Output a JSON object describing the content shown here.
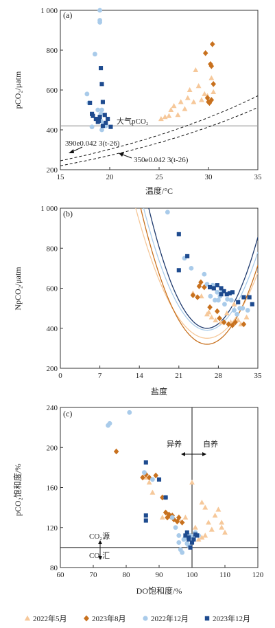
{
  "legend": [
    {
      "label": "2022年5月",
      "color": "#f6c89a",
      "marker": "triangle"
    },
    {
      "label": "2023年8月",
      "color": "#c8711e",
      "marker": "diamond"
    },
    {
      "label": "2022年12月",
      "color": "#a9cbea",
      "marker": "circle"
    },
    {
      "label": "2023年12月",
      "color": "#1e4b8f",
      "marker": "square"
    }
  ],
  "chart_data": [
    {
      "panel_label": "(a)",
      "type": "scatter",
      "xlabel": "温度/°C",
      "ylabel": "pCO₂/μatm",
      "xlim": [
        15,
        35
      ],
      "ylim": [
        200,
        1000
      ],
      "xticks": [
        15,
        20,
        25,
        30,
        35
      ],
      "yticks": [
        200,
        400,
        600,
        800,
        1000
      ],
      "ytick_labels": [
        "200",
        "400",
        "600",
        "800",
        "1 000"
      ],
      "reference_line": {
        "y": 420,
        "label": "大气pCO₂"
      },
      "curves": [
        {
          "label": "390e0.042 3(t-26)",
          "a": 390,
          "k": 0.0423,
          "t0": 26
        },
        {
          "label": "350e0.042 3(t-26)",
          "a": 350,
          "k": 0.0423,
          "t0": 26
        }
      ],
      "series": [
        {
          "name": "2022年5月",
          "points": [
            [
              25.2,
              455
            ],
            [
              25.6,
              465
            ],
            [
              26.0,
              470
            ],
            [
              26.2,
              500
            ],
            [
              26.5,
              520
            ],
            [
              26.9,
              475
            ],
            [
              27.2,
              540
            ],
            [
              27.6,
              505
            ],
            [
              27.9,
              560
            ],
            [
              28.1,
              600
            ],
            [
              28.5,
              540
            ],
            [
              28.7,
              700
            ],
            [
              29.0,
              620
            ],
            [
              29.3,
              550
            ],
            [
              29.6,
              580
            ],
            [
              29.9,
              570
            ],
            [
              30.3,
              660
            ],
            [
              30.5,
              590
            ]
          ]
        },
        {
          "name": "2023年8月",
          "points": [
            [
              29.7,
              785
            ],
            [
              29.9,
              560
            ],
            [
              30.0,
              540
            ],
            [
              30.1,
              535
            ],
            [
              30.2,
              730
            ],
            [
              30.3,
              720
            ],
            [
              30.4,
              830
            ],
            [
              30.5,
              630
            ],
            [
              30.3,
              550
            ]
          ]
        },
        {
          "name": "2022年12月",
          "points": [
            [
              17.7,
              580
            ],
            [
              17.9,
              535
            ],
            [
              18.2,
              415
            ],
            [
              18.5,
              780
            ],
            [
              18.8,
              500
            ],
            [
              19.0,
              1000
            ],
            [
              19.0,
              950
            ],
            [
              19.0,
              940
            ],
            [
              19.1,
              480
            ],
            [
              19.2,
              400
            ],
            [
              19.2,
              500
            ],
            [
              19.4,
              430
            ],
            [
              19.6,
              420
            ],
            [
              19.1,
              445
            ]
          ]
        },
        {
          "name": "2023年12月",
          "points": [
            [
              18.0,
              535
            ],
            [
              18.2,
              480
            ],
            [
              18.3,
              470
            ],
            [
              18.6,
              455
            ],
            [
              18.8,
              440
            ],
            [
              19.0,
              465
            ],
            [
              19.1,
              710
            ],
            [
              19.2,
              630
            ],
            [
              19.3,
              540
            ],
            [
              19.5,
              475
            ],
            [
              19.6,
              435
            ],
            [
              19.8,
              455
            ],
            [
              20.1,
              415
            ],
            [
              19.3,
              420
            ],
            [
              18.9,
              445
            ]
          ]
        }
      ]
    },
    {
      "panel_label": "(b)",
      "type": "scatter",
      "xlabel": "盐度",
      "ylabel": "NpCO₂/μatm",
      "xlim": [
        0,
        35
      ],
      "ylim": [
        200,
        1000
      ],
      "xticks": [
        0,
        7,
        14,
        21,
        28,
        35
      ],
      "yticks": [
        200,
        400,
        600,
        800,
        1000
      ],
      "ytick_labels": [
        "200",
        "400",
        "600",
        "800",
        "1 000"
      ],
      "curves": [
        {
          "color": "#f6c89a",
          "c0": 4.0,
          "a": 350,
          "k": 0.00042,
          "xmin": 1.0,
          "xmax": 35
        },
        {
          "color": "#a9cbea",
          "c0": 4.8,
          "a": 390,
          "k": 0.00026,
          "xmin": 2.6,
          "xmax": 35
        },
        {
          "color": "#1e3a6e",
          "c0": 5.6,
          "a": 400,
          "k": 0.00018,
          "xmin": 6.0,
          "xmax": 35
        },
        {
          "color": "#c8711e",
          "c0": 4.8,
          "a": 320,
          "k": 0.00088,
          "xmin": 11.6,
          "xmax": 35
        }
      ],
      "series": [
        {
          "name": "2022年5月",
          "points": [
            [
              23.5,
              575
            ],
            [
              25.0,
              560
            ],
            [
              26.0,
              470
            ],
            [
              26.8,
              455
            ],
            [
              27.5,
              440
            ],
            [
              28.5,
              430
            ],
            [
              29.5,
              475
            ],
            [
              30.2,
              430
            ],
            [
              31.5,
              440
            ],
            [
              32.0,
              420
            ],
            [
              33.0,
              455
            ],
            [
              26.3,
              480
            ],
            [
              30.8,
              520
            ]
          ]
        },
        {
          "name": "2023年8月",
          "points": [
            [
              23.5,
              565
            ],
            [
              24.3,
              555
            ],
            [
              24.6,
              610
            ],
            [
              24.9,
              630
            ],
            [
              25.5,
              605
            ],
            [
              26.5,
              505
            ],
            [
              27.8,
              485
            ],
            [
              28.2,
              450
            ],
            [
              29.0,
              430
            ],
            [
              29.8,
              420
            ],
            [
              30.5,
              415
            ],
            [
              31.0,
              430
            ],
            [
              32.5,
              420
            ]
          ]
        },
        {
          "name": "2022年12月",
          "points": [
            [
              19.0,
              980
            ],
            [
              22.0,
              750
            ],
            [
              23.2,
              700
            ],
            [
              25.5,
              670
            ],
            [
              26.0,
              620
            ],
            [
              27.0,
              615
            ],
            [
              27.8,
              580
            ],
            [
              28.3,
              560
            ],
            [
              28.7,
              585
            ],
            [
              29.1,
              520
            ],
            [
              29.6,
              545
            ],
            [
              30.3,
              540
            ],
            [
              30.8,
              490
            ],
            [
              31.3,
              470
            ],
            [
              31.8,
              500
            ],
            [
              32.3,
              500
            ],
            [
              33.2,
              490
            ],
            [
              26.6,
              560
            ],
            [
              27.4,
              540
            ],
            [
              28.0,
              540
            ]
          ]
        },
        {
          "name": "2023年12月",
          "points": [
            [
              21.0,
              870
            ],
            [
              21.0,
              690
            ],
            [
              22.5,
              760
            ],
            [
              26.5,
              605
            ],
            [
              27.2,
              600
            ],
            [
              27.8,
              615
            ],
            [
              28.5,
              600
            ],
            [
              29.0,
              585
            ],
            [
              29.5,
              570
            ],
            [
              30.0,
              575
            ],
            [
              30.5,
              580
            ],
            [
              31.5,
              530
            ],
            [
              32.5,
              555
            ],
            [
              33.5,
              555
            ],
            [
              34.0,
              520
            ],
            [
              28.5,
              570
            ]
          ]
        }
      ]
    },
    {
      "panel_label": "(c)",
      "type": "scatter",
      "xlabel": "DO饱和度/%",
      "ylabel": "pCO₂饱和度/%",
      "xlim": [
        60,
        120
      ],
      "ylim": [
        80,
        240
      ],
      "xticks": [
        60,
        70,
        80,
        90,
        100,
        110,
        120
      ],
      "yticks": [
        80,
        120,
        160,
        200,
        240
      ],
      "ytick_labels": [
        "80",
        "120",
        "160",
        "200",
        "240"
      ],
      "hline": {
        "y": 100
      },
      "vline": {
        "x": 100
      },
      "annotations": {
        "yiyang": "异养",
        "ziyang": "自养",
        "source": "CO₂源",
        "sink": "CO₂汇"
      },
      "series": [
        {
          "name": "2022年5月",
          "points": [
            [
              86,
              170
            ],
            [
              87,
              165
            ],
            [
              88,
              155
            ],
            [
              91,
              130
            ],
            [
              96,
              128
            ],
            [
              98,
              130
            ],
            [
              100,
              165
            ],
            [
              101,
              120
            ],
            [
              102,
              108
            ],
            [
              103,
              145
            ],
            [
              103,
              110
            ],
            [
              104,
              140
            ],
            [
              105,
              125
            ],
            [
              107,
              132
            ],
            [
              108,
              138
            ],
            [
              109,
              120
            ],
            [
              109,
              125
            ],
            [
              110,
              115
            ],
            [
              106,
              118
            ],
            [
              104,
              112
            ]
          ]
        },
        {
          "name": "2023年8月",
          "points": [
            [
              77,
              196
            ],
            [
              85,
              170
            ],
            [
              86,
              173
            ],
            [
              87,
              170
            ],
            [
              89,
              172
            ],
            [
              91,
              150
            ],
            [
              92,
              135
            ],
            [
              92.5,
              130
            ],
            [
              93,
              133
            ],
            [
              93.5,
              131
            ],
            [
              94,
              132
            ],
            [
              94.5,
              128
            ],
            [
              95.5,
              126
            ],
            [
              96,
              130
            ],
            [
              97,
              125
            ]
          ]
        },
        {
          "name": "2022年12月",
          "points": [
            [
              74.5,
              222
            ],
            [
              75,
              224
            ],
            [
              81,
              235
            ],
            [
              85.5,
              175
            ],
            [
              88,
              168
            ],
            [
              92,
              150
            ],
            [
              94,
              130
            ],
            [
              96,
              105
            ],
            [
              96.5,
              98
            ],
            [
              97,
              95
            ],
            [
              97.5,
              108
            ],
            [
              98,
              110
            ],
            [
              98.5,
              104
            ],
            [
              99,
              102
            ],
            [
              99.5,
              112
            ],
            [
              100,
              110
            ],
            [
              100.5,
              108
            ],
            [
              101,
              115
            ],
            [
              102,
              112
            ],
            [
              95,
              120
            ],
            [
              96,
              112
            ]
          ]
        },
        {
          "name": "2023年12月",
          "points": [
            [
              86,
              132
            ],
            [
              86,
              127
            ],
            [
              86,
              185
            ],
            [
              90,
              168
            ],
            [
              92,
              150
            ],
            [
              98,
              112
            ],
            [
              98.5,
              115
            ],
            [
              99,
              110
            ],
            [
              99.5,
              100
            ],
            [
              100,
              105
            ],
            [
              100.5,
              108
            ],
            [
              101,
              113
            ],
            [
              101.5,
              112
            ],
            [
              99,
              108
            ]
          ]
        }
      ]
    }
  ]
}
